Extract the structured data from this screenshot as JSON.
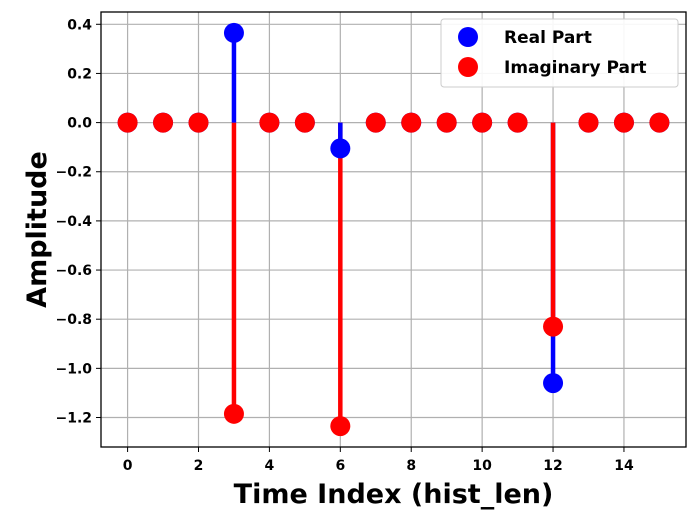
{
  "chart_data": {
    "type": "stem",
    "xlabel": "Time Index (hist_len)",
    "ylabel": "Amplitude",
    "xlim": [
      -0.75,
      15.75
    ],
    "ylim": [
      -1.32,
      0.45
    ],
    "xticks": [
      0,
      2,
      4,
      6,
      8,
      10,
      12,
      14
    ],
    "yticks": [
      0.4,
      0.2,
      0.0,
      -0.2,
      -0.4,
      -0.6,
      -0.8,
      -1.0,
      -1.2
    ],
    "ytick_labels": [
      "0.4",
      "0.2",
      "0.0",
      "−0.2",
      "−0.4",
      "−0.6",
      "−0.8",
      "−1.0",
      "−1.2"
    ],
    "grid": true,
    "legend_position": "top-right",
    "x": [
      0,
      1,
      2,
      3,
      4,
      5,
      6,
      7,
      8,
      9,
      10,
      11,
      12,
      13,
      14,
      15
    ],
    "series": [
      {
        "name": "Real Part",
        "color": "#0000ff",
        "values": [
          0,
          0,
          0,
          0.365,
          0,
          0,
          -0.105,
          0,
          0,
          0,
          0,
          0,
          -1.06,
          0,
          0,
          0
        ]
      },
      {
        "name": "Imaginary Part",
        "color": "#ff0000",
        "values": [
          0,
          0,
          0,
          -1.185,
          0,
          0,
          -1.235,
          0,
          0,
          0,
          0,
          0,
          -0.83,
          0,
          0,
          0
        ]
      }
    ]
  }
}
